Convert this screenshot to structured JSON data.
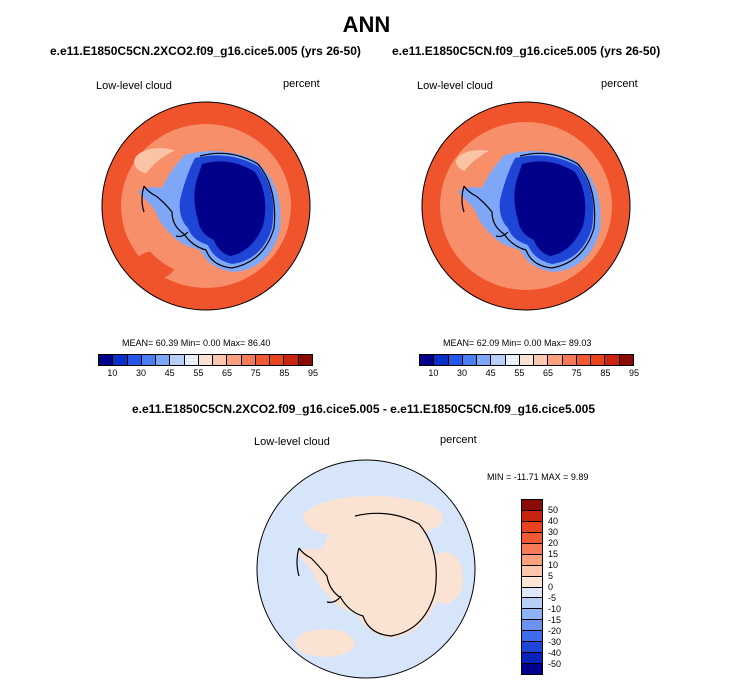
{
  "main_title": "ANN",
  "panels": [
    {
      "case_title": "e.e11.E1850C5CN.2XCO2.f09_g16.cice5.005 (yrs 26-50)",
      "variable_label": "Low-level cloud",
      "units_label": "percent",
      "stats": {
        "mean": "60.39",
        "min": "0.00",
        "max": "86.40"
      },
      "stats_text": "MEAN=  60.39  Min=   0.00  Max=  86.40"
    },
    {
      "case_title": "e.e11.E1850C5CN.f09_g16.cice5.005 (yrs 26-50)",
      "variable_label": "Low-level cloud",
      "units_label": "percent",
      "stats": {
        "mean": "62.09",
        "min": "0.00",
        "max": "89.03"
      },
      "stats_text": "MEAN=  62.09  Min=   0.00  Max=  89.03"
    }
  ],
  "difference_panel": {
    "title": "e.e11.E1850C5CN.2XCO2.f09_g16.cice5.005 - e.e11.E1850C5CN.f09_g16.cice5.005",
    "variable_label": "Low-level cloud",
    "units_label": "percent",
    "stats": {
      "min": "-11.71",
      "max": "9.89"
    },
    "stats_text": "MIN = -11.71 MAX =  9.89"
  },
  "absolute_colorbar": {
    "tick_labels": [
      "10",
      "30",
      "45",
      "55",
      "65",
      "75",
      "85",
      "95"
    ],
    "colors": [
      "#00008b",
      "#0a2fc8",
      "#2456e8",
      "#4b7ef5",
      "#7fa7f7",
      "#b7cff8",
      "#e8f0fb",
      "#fbe3d3",
      "#fbc6a9",
      "#f9a07c",
      "#f57a55",
      "#f05a33",
      "#e8431f",
      "#c7230e",
      "#8c0a05"
    ]
  },
  "difference_colorbar": {
    "tick_labels": [
      "50",
      "40",
      "30",
      "20",
      "15",
      "10",
      "5",
      "0",
      "-5",
      "-10",
      "-15",
      "-20",
      "-30",
      "-40",
      "-50"
    ],
    "colors": [
      "#8c0a05",
      "#c7230e",
      "#e8431f",
      "#f05a33",
      "#f57a55",
      "#f9a07c",
      "#fbc6a9",
      "#fde6d6",
      "#dde9fa",
      "#b7cff8",
      "#8fb1f5",
      "#6a93f2",
      "#3e6ce8",
      "#1f45d6",
      "#0a22b8",
      "#00008b"
    ]
  },
  "map_colors": {
    "ocean_high": "#f0542c",
    "ocean_mid": "#f78f6a",
    "ocean_low": "#fbc4a5",
    "land_low": "#00008b",
    "land_mid": "#1f45d6",
    "land_light": "#7fa7f7",
    "diff_ocean": "#d7e5fa",
    "diff_band": "#fbe3d3",
    "coast": "#000000"
  }
}
